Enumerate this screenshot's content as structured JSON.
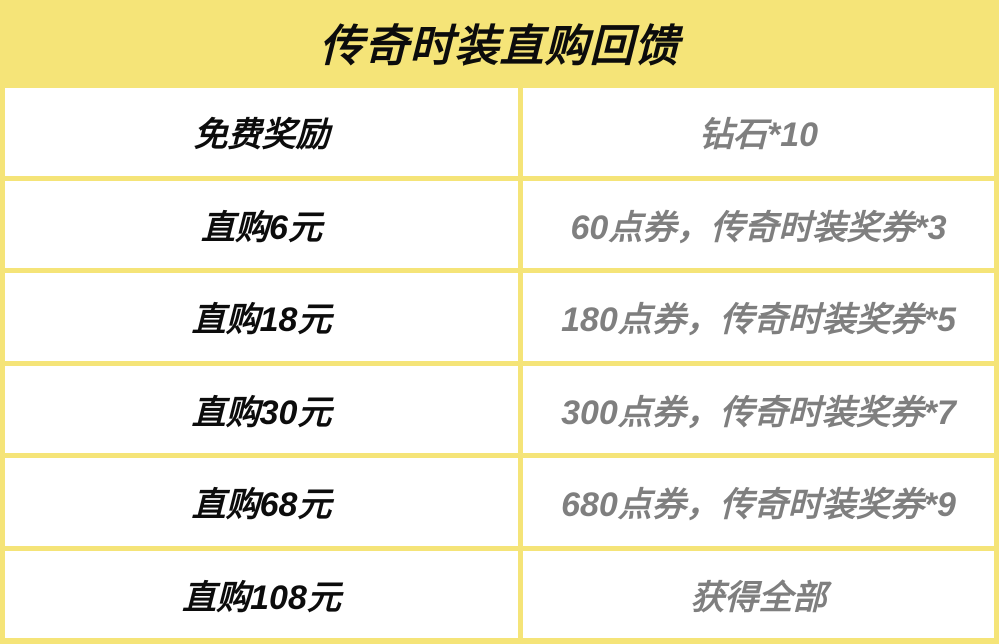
{
  "table": {
    "title": "传奇时装直购回馈",
    "rows": [
      {
        "tier": "免费奖励",
        "reward": "钻石*10"
      },
      {
        "tier": "直购6元",
        "reward": "60点券，传奇时装奖券*3"
      },
      {
        "tier": "直购18元",
        "reward": "180点券，传奇时装奖券*5"
      },
      {
        "tier": "直购30元",
        "reward": "300点券，传奇时装奖券*7"
      },
      {
        "tier": "直购68元",
        "reward": "680点券，传奇时装奖券*9"
      },
      {
        "tier": "直购108元",
        "reward": "获得全部"
      }
    ],
    "colors": {
      "accent_yellow": "#f5e478",
      "tier_text": "#0c0c0c",
      "reward_text": "#7f7f7f",
      "cell_background": "#ffffff"
    }
  }
}
